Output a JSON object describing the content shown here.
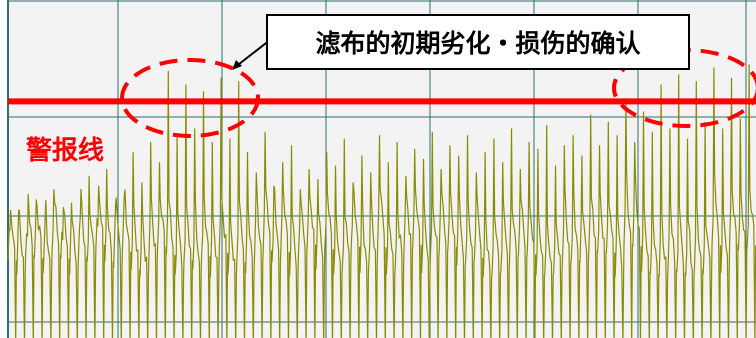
{
  "colors": {
    "background": "#ffffff",
    "plot_background": "#f3f3f3",
    "grid": "#2f6f6f",
    "signal": "#8b8b00",
    "alarm_line": "#ff0000",
    "highlight_ellipse": "#ff0000",
    "callout_text": "#000000"
  },
  "annotations": {
    "callout_text": "滤布的初期劣化・损伤的确认",
    "alarm_label": "警报线"
  },
  "chart_data": {
    "type": "line",
    "title": "",
    "xlabel": "",
    "ylabel": "",
    "grid": true,
    "tick_labels_visible": false,
    "ylim": [
      0,
      100
    ],
    "alarm_threshold": 70,
    "description_of_units": "unitless signal amplitude (no axis labels shown)",
    "series": [
      {
        "type": "pulse_peaks",
        "peaks": [
          32,
          38,
          30,
          41,
          35,
          44,
          29,
          40,
          36,
          48,
          33,
          50,
          39,
          42,
          55,
          46,
          58,
          52,
          79,
          60,
          75,
          62,
          73,
          58,
          77,
          59,
          76,
          55,
          49,
          61,
          45,
          52,
          57,
          44,
          50,
          47,
          55,
          51,
          59,
          46,
          54,
          49,
          60,
          52,
          58,
          48,
          56,
          53,
          61,
          50,
          57,
          54,
          60,
          49,
          55,
          59,
          52,
          62,
          50,
          58,
          56,
          63,
          51,
          57,
          60,
          54,
          66,
          57,
          64,
          60,
          71,
          58,
          67,
          61,
          75,
          62,
          78,
          59,
          76,
          64,
          80,
          62,
          77,
          65,
          81
        ]
      }
    ],
    "highlighted_regions": [
      {
        "label_ref": "callout_text",
        "region": "early peaks crossing alarm"
      },
      {
        "label_ref": "callout_text",
        "region": "late peaks crossing alarm"
      }
    ]
  }
}
